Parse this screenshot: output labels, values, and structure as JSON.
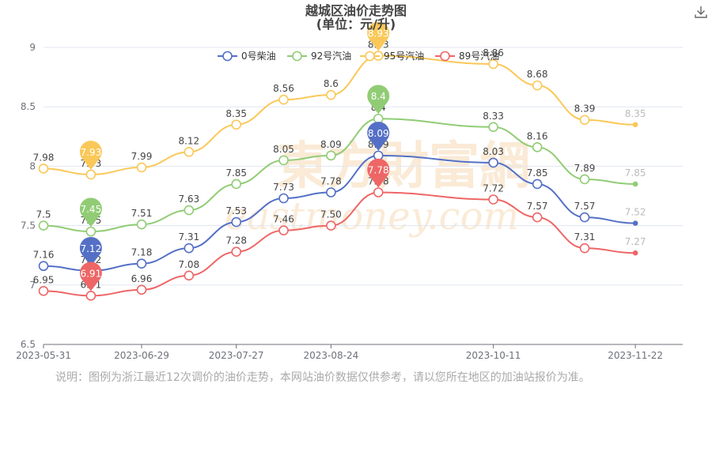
{
  "title": {
    "line1": "越城区油价走势图",
    "line2": "(单位：元/升)"
  },
  "toolbar": {
    "download_icon": "download-icon"
  },
  "watermark": {
    "cn": "東方財富網",
    "en": "eastmoney.com",
    "color": "#f6d9b5"
  },
  "note": "说明：图例为浙江最近12次调价的油价走势，本网站油价数据仅供参考，请以您所在地区的加油站报价为准。",
  "chart_data": {
    "type": "line",
    "xlabel": "",
    "ylabel": "",
    "ylim": [
      6.5,
      9
    ],
    "y_ticks": [
      "6.5",
      "7",
      "7.5",
      "8",
      "8.5",
      "9"
    ],
    "x_ticks": [
      "2023-05-31",
      "2023-06-29",
      "2023-07-27",
      "2023-08-24",
      "2023-10-11",
      "2023-11-22"
    ],
    "grid": "horizontal",
    "legend_position": "top-right",
    "point_labels": [
      "2023-05-31",
      "2023-06-14",
      "2023-06-29",
      "2023-07-13",
      "2023-07-27",
      "2023-08-10",
      "2023-08-24",
      "2023-09-07",
      "2023-10-11",
      "2023-10-24",
      "2023-11-07",
      "2023-11-22"
    ],
    "series": [
      {
        "name": "0号柴油",
        "color": "#5470c6",
        "values": [
          7.16,
          7.12,
          7.18,
          7.31,
          7.53,
          7.73,
          7.78,
          8.09,
          8.03,
          7.85,
          7.57,
          7.52
        ],
        "labels": [
          "7.16",
          "7.12",
          "7.18",
          "7.31",
          "7.53",
          "7.73",
          "7.78",
          "8.09",
          "8.03",
          "7.85",
          "7.57",
          "7.52"
        ],
        "min_marker": "7.12",
        "max_marker": "8.09"
      },
      {
        "name": "92号汽油",
        "color": "#91cc75",
        "values": [
          7.5,
          7.45,
          7.51,
          7.63,
          7.85,
          8.05,
          8.09,
          8.4,
          8.33,
          8.16,
          7.89,
          7.85
        ],
        "labels": [
          "7.5",
          "7.45",
          "7.51",
          "7.63",
          "7.85",
          "8.05",
          "8.09",
          "8.4",
          "8.33",
          "8.16",
          "7.89",
          "7.85"
        ],
        "min_marker": "7.45",
        "max_marker": "8.4"
      },
      {
        "name": "95号汽油",
        "color": "#fac858",
        "values": [
          7.98,
          7.93,
          7.99,
          8.12,
          8.35,
          8.56,
          8.6,
          8.93,
          8.86,
          8.68,
          8.39,
          8.35
        ],
        "labels": [
          "7.98",
          "7.93",
          "7.99",
          "8.12",
          "8.35",
          "8.56",
          "8.6",
          "8.93",
          "8.86",
          "8.68",
          "8.39",
          "8.35"
        ],
        "min_marker": "7.93",
        "max_marker": "8.93"
      },
      {
        "name": "89号汽油",
        "color": "#ee6666",
        "values": [
          6.95,
          6.91,
          6.96,
          7.08,
          7.28,
          7.46,
          7.5,
          7.78,
          7.72,
          7.57,
          7.31,
          7.27
        ],
        "labels": [
          "6.95",
          "6.91",
          "6.96",
          "7.08",
          "7.28",
          "7.46",
          "7.50",
          "7.78",
          "7.72",
          "7.57",
          "7.31",
          "7.27"
        ],
        "min_marker": "6.91",
        "max_marker": "7.78"
      }
    ]
  }
}
